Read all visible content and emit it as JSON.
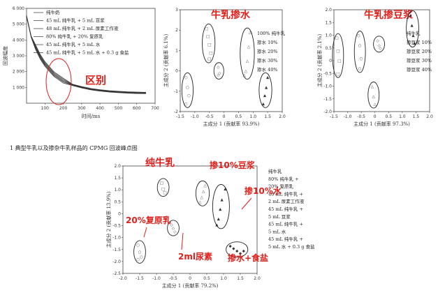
{
  "caption": "1   典型牛乳以及掺杂牛乳样品的 CPMG 回波峰点图",
  "chart_data": [
    {
      "type": "line",
      "xlabel": "时间/ms",
      "ylabel": "回波幅度",
      "xlim": [
        0,
        700
      ],
      "ylim": [
        0,
        6000
      ],
      "xticks": [
        "100",
        "200",
        "300",
        "400",
        "500",
        "600",
        "700"
      ],
      "yticks": [
        "1 000",
        "2 000",
        "3 000",
        "4 000",
        "5 000",
        "6 000"
      ],
      "legend": [
        "纯牛奶",
        "45 mL 纯牛乳 + 5 mL 豆浆",
        "48 mL 纯牛乳 + 2 mL 尿素工作液",
        "80% 纯牛乳 + 20% 复原乳",
        "45 mL 纯牛乳 + 5 mL 水",
        "45 mL 纯牛乳 + 5 mL 水 + 0.3 g 食盐"
      ],
      "annotation": "区别",
      "series": [
        {
          "values_x": [
            0,
            25,
            50,
            75,
            100,
            150,
            200,
            250,
            300,
            350,
            400,
            450,
            500,
            550,
            600,
            650
          ],
          "values_y": [
            5500,
            4200,
            3500,
            2900,
            2450,
            1800,
            1400,
            1150,
            1000,
            880,
            800,
            740,
            700,
            670,
            650,
            640
          ]
        }
      ]
    },
    {
      "type": "scatter",
      "title": "牛乳掺水",
      "xlabel": "主成分 1 (贡献率 93.9%)",
      "ylabel": "主成分 2 (贡献率 6.1%)",
      "xlim": [
        -1.5,
        2.0
      ],
      "ylim": [
        -2,
        3
      ],
      "xticks": [
        "-1.5",
        "-1.0",
        "-0.5",
        "0",
        "0.5",
        "1.0",
        "1.5",
        "2.0"
      ],
      "yticks": [
        "-2",
        "-1",
        "0",
        "1",
        "2",
        "3"
      ],
      "legend": [
        "100% 纯牛乳",
        "掺水 10%",
        "掺水 20%",
        "掺水 30%",
        "掺水 40%"
      ],
      "series": [
        {
          "points": [
            [
              -0.6,
              2.1
            ],
            [
              -0.55,
              1.7
            ],
            [
              -0.5,
              1.3
            ],
            [
              -0.45,
              0.9
            ],
            [
              -0.5,
              0.6
            ]
          ]
        },
        {
          "points": [
            [
              -1.3,
              -0.3
            ],
            [
              -1.25,
              -0.8
            ],
            [
              -1.2,
              -1.2
            ],
            [
              -1.3,
              -1.6
            ]
          ]
        },
        {
          "points": [
            [
              -0.2,
              0.2
            ],
            [
              -0.15,
              -0.1
            ],
            [
              -0.2,
              -0.2
            ]
          ]
        },
        {
          "points": [
            [
              0.9,
              1.9
            ],
            [
              0.85,
              1.2
            ],
            [
              0.8,
              0.5
            ],
            [
              0.75,
              0.0
            ],
            [
              0.7,
              -0.2
            ]
          ]
        },
        {
          "points": [
            [
              1.5,
              -0.3
            ],
            [
              1.45,
              -0.8
            ],
            [
              1.4,
              -1.2
            ],
            [
              1.35,
              -1.6
            ]
          ]
        }
      ]
    },
    {
      "type": "scatter",
      "title": "牛乳掺豆浆",
      "xlabel": "主成分 1 (贡献率 97.3%)",
      "ylabel": "主成分 2 (贡献率 2.1%)",
      "xlim": [
        -1.5,
        2.0
      ],
      "ylim": [
        -2,
        2
      ],
      "xticks": [
        "-1.5",
        "-1.0",
        "-0.5",
        "0",
        "0.5",
        "1.0",
        "1.5",
        "2.0"
      ],
      "yticks": [
        "-2.0",
        "-1.5",
        "-1.0",
        "-0.5",
        "0",
        "0.5",
        "1.0",
        "1.5",
        "2.0"
      ],
      "legend": [
        "纯牛乳",
        "掺豆浆 10%",
        "掺豆浆 20%",
        "掺豆浆 30%",
        "掺豆浆 40%"
      ],
      "series": [
        {
          "points": [
            [
              -1.4,
              0.9
            ],
            [
              -1.35,
              0.4
            ],
            [
              -1.3,
              0.0
            ],
            [
              -1.35,
              -0.5
            ]
          ]
        },
        {
          "points": [
            [
              -0.6,
              1.0
            ],
            [
              -0.55,
              0.6
            ],
            [
              -0.5,
              0.1
            ],
            [
              -0.55,
              -0.3
            ]
          ]
        },
        {
          "points": [
            [
              0.1,
              0.8
            ],
            [
              0.15,
              0.6
            ],
            [
              0.2,
              0.5
            ]
          ]
        },
        {
          "points": [
            [
              -0.1,
              -1.0
            ],
            [
              -0.05,
              -1.4
            ],
            [
              0.0,
              -1.7
            ]
          ]
        },
        {
          "points": [
            [
              1.3,
              1.8
            ],
            [
              1.35,
              1.4
            ],
            [
              1.4,
              1.0
            ],
            [
              1.45,
              0.7
            ]
          ]
        }
      ]
    },
    {
      "type": "scatter",
      "xlabel": "主成分 1 (贡献率 79.2%)",
      "ylabel": "主成分 2 (贡献率 13.9%)",
      "xlim": [
        -2.0,
        2.0
      ],
      "ylim": [
        -2.5,
        2.0
      ],
      "xticks": [
        "-2.0",
        "-1.5",
        "-1.0",
        "-0.5",
        "0",
        "0.5",
        "1.0",
        "1.5",
        "2.0"
      ],
      "yticks": [
        "-2.5",
        "-2.0",
        "-1.5",
        "-1.0",
        "-0.5",
        "0",
        "0.5",
        "1.0",
        "1.5",
        "2.0"
      ],
      "legend": [
        "纯牛乳",
        "80% 纯牛乳 +",
        "20% 复原乳",
        "48 mL 纯牛乳 +",
        "2 mL 尿素工作液",
        "45 mL 纯牛乳 +",
        "5 mL 豆浆",
        "45 mL 纯牛乳 +",
        "5 mL 水",
        "45 mL 纯牛乳 +",
        "5 mL 水 + 0.3 g 食盐"
      ],
      "annotations": [
        "纯牛乳",
        "掺10%豆浆",
        "掺10%水",
        "20%复原乳",
        "2ml尿素",
        "掺水+食盐"
      ],
      "series": [
        {
          "points": [
            [
              -0.85,
              1.3
            ],
            [
              -0.8,
              1.05
            ],
            [
              -0.75,
              0.9
            ]
          ]
        },
        {
          "points": [
            [
              -1.55,
              -1.3
            ],
            [
              -1.5,
              -1.6
            ],
            [
              -1.45,
              -1.8
            ],
            [
              -1.55,
              -1.9
            ]
          ]
        },
        {
          "points": [
            [
              -0.55,
              -0.45
            ],
            [
              -0.5,
              -0.6
            ],
            [
              -0.45,
              -0.75
            ]
          ]
        },
        {
          "points": [
            [
              0.45,
              1.2
            ],
            [
              0.4,
              0.95
            ],
            [
              0.35,
              0.7
            ],
            [
              0.3,
              0.5
            ]
          ]
        },
        {
          "points": [
            [
              1.05,
              1.05
            ],
            [
              0.95,
              0.6
            ],
            [
              0.9,
              0.2
            ],
            [
              0.85,
              -0.2
            ],
            [
              0.8,
              -0.45
            ]
          ]
        },
        {
          "points": [
            [
              1.2,
              -1.35
            ],
            [
              1.3,
              -1.45
            ],
            [
              1.4,
              -1.55
            ],
            [
              1.5,
              -1.65
            ],
            [
              1.6,
              -1.55
            ]
          ]
        }
      ]
    }
  ]
}
